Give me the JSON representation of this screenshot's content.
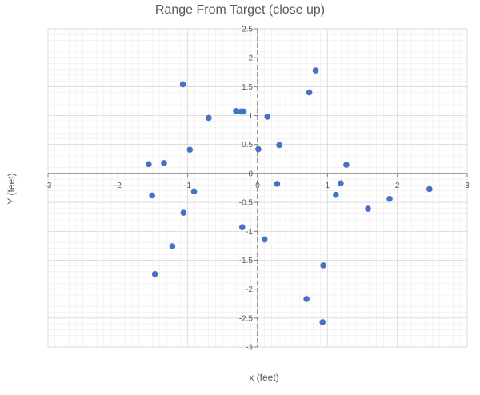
{
  "chart_data": {
    "type": "scatter",
    "title": "Range From Target (close up)",
    "xlabel": "x (feet)",
    "ylabel": "Y (feet)",
    "xlim": [
      -3,
      3
    ],
    "ylim": [
      -3,
      2.5
    ],
    "x_ticks": [
      -3,
      -2,
      -1,
      0,
      1,
      2,
      3
    ],
    "x_tick_labels": [
      "-3",
      "-2",
      "-1",
      "0",
      "1",
      "2",
      "3"
    ],
    "y_ticks": [
      2.5,
      2,
      1.5,
      1,
      0.5,
      0,
      -0.5,
      -1,
      -1.5,
      -2,
      -2.5,
      -3
    ],
    "y_tick_labels": [
      "2.5",
      "2",
      "1.5",
      "1",
      "0.5",
      "0",
      "-0.5",
      "-1",
      "-1.5",
      "-2",
      "-2.5",
      "-3"
    ],
    "grid": true,
    "legend": "none",
    "marker_color": "#4472C4",
    "axis_color": "#7F7F7F",
    "grid_color": "#D9D9D9",
    "points": [
      {
        "x": 0.83,
        "y": 1.78
      },
      {
        "x": 0.74,
        "y": 1.4
      },
      {
        "x": -1.07,
        "y": 1.54
      },
      {
        "x": -0.31,
        "y": 1.08
      },
      {
        "x": -0.24,
        "y": 1.07
      },
      {
        "x": -0.2,
        "y": 1.07
      },
      {
        "x": 0.14,
        "y": 0.98
      },
      {
        "x": -0.7,
        "y": 0.96
      },
      {
        "x": 0.01,
        "y": 0.42
      },
      {
        "x": 0.31,
        "y": 0.49
      },
      {
        "x": -0.97,
        "y": 0.41
      },
      {
        "x": -1.34,
        "y": 0.18
      },
      {
        "x": -1.56,
        "y": 0.16
      },
      {
        "x": 1.27,
        "y": 0.15
      },
      {
        "x": 1.19,
        "y": -0.17
      },
      {
        "x": 0.28,
        "y": -0.18
      },
      {
        "x": -0.91,
        "y": -0.31
      },
      {
        "x": -1.51,
        "y": -0.38
      },
      {
        "x": 1.12,
        "y": -0.37
      },
      {
        "x": 1.89,
        "y": -0.44
      },
      {
        "x": 2.46,
        "y": -0.27
      },
      {
        "x": 1.58,
        "y": -0.61
      },
      {
        "x": -1.06,
        "y": -0.68
      },
      {
        "x": -0.22,
        "y": -0.93
      },
      {
        "x": 0.1,
        "y": -1.14
      },
      {
        "x": -1.22,
        "y": -1.26
      },
      {
        "x": 0.94,
        "y": -1.59
      },
      {
        "x": -1.47,
        "y": -1.74
      },
      {
        "x": 0.7,
        "y": -2.17
      },
      {
        "x": 0.93,
        "y": -2.57
      }
    ]
  }
}
